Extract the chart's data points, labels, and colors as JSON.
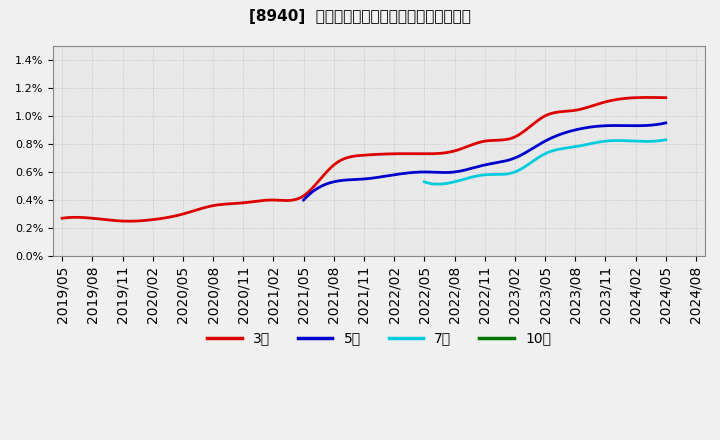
{
  "title": "[8940]  当期純利益マージンの標準偏差の推移",
  "title_fontsize": 11,
  "background_color": "#f0f0f0",
  "plot_bg_color": "#e8e8e8",
  "grid_color": "#999999",
  "ylim": [
    0.0,
    0.015
  ],
  "yticks": [
    0.0,
    0.002,
    0.004,
    0.006,
    0.008,
    0.01,
    0.012,
    0.014
  ],
  "ytick_labels": [
    "0.0%",
    "0.2%",
    "0.4%",
    "0.6%",
    "0.8%",
    "1.0%",
    "1.2%",
    "1.4%"
  ],
  "x_labels": [
    "2019/05",
    "2019/08",
    "2019/11",
    "2020/02",
    "2020/05",
    "2020/08",
    "2020/11",
    "2021/02",
    "2021/05",
    "2021/08",
    "2021/11",
    "2022/02",
    "2022/05",
    "2022/08",
    "2022/11",
    "2023/02",
    "2023/05",
    "2023/08",
    "2023/11",
    "2024/02",
    "2024/05",
    "2024/08"
  ],
  "series": {
    "3年": {
      "color": "#dd0000",
      "data_x": [
        0,
        1,
        2,
        3,
        4,
        5,
        6,
        7,
        8,
        9,
        10,
        11,
        12,
        13,
        14,
        15,
        16,
        17,
        18,
        19,
        20
      ],
      "data_y": [
        0.0027,
        0.0027,
        0.0025,
        0.0026,
        0.003,
        0.0036,
        0.0038,
        0.004,
        0.0043,
        0.0065,
        0.0072,
        0.0073,
        0.0073,
        0.0075,
        0.0082,
        0.0085,
        0.01,
        0.0104,
        0.011,
        0.0113,
        0.0113
      ]
    },
    "5年": {
      "color": "#0000cc",
      "data_x": [
        8,
        9,
        10,
        11,
        12,
        13,
        14,
        15,
        16,
        17,
        18,
        19,
        20
      ],
      "data_y": [
        0.004,
        0.0053,
        0.0055,
        0.0058,
        0.006,
        0.006,
        0.0065,
        0.007,
        0.0082,
        0.009,
        0.0093,
        0.0093,
        0.0095
      ]
    },
    "7年": {
      "color": "#00ccdd",
      "data_x": [
        12,
        13,
        14,
        15,
        16,
        17,
        18,
        19,
        20
      ],
      "data_y": [
        0.0053,
        0.0053,
        0.0058,
        0.006,
        0.0073,
        0.0078,
        0.0082,
        0.0082,
        0.0083
      ]
    },
    "10年": {
      "color": "#007700",
      "data_x": [],
      "data_y": []
    }
  },
  "legend_entries": [
    "3年",
    "5年",
    "7年",
    "10年"
  ],
  "legend_colors": [
    "#dd0000",
    "#0000cc",
    "#00ccdd",
    "#007700"
  ]
}
